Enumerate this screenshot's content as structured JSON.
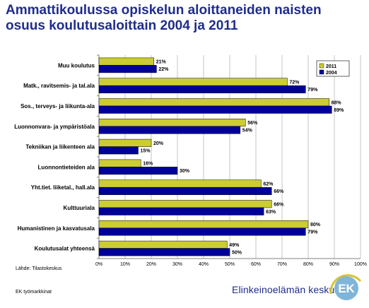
{
  "title": "Ammattikoulussa opiskelun aloittaneiden naisten osuus koulutusaloittain  2004 ja 2011",
  "source": "Lähde: Tilastokeskus",
  "footer_left": "EK työmarkkinat",
  "footer_org": "Elinkeinoelämän keskusliitto",
  "logo_text": "EK",
  "colors": {
    "s2011": "#cccc33",
    "s2004": "#000099",
    "title": "#1f2d8c",
    "logo": "#7fb5d8"
  },
  "chart_data": {
    "type": "bar",
    "orientation": "horizontal",
    "categories": [
      "Muu koulutus",
      "Matk., ravitsemis- ja tal.ala",
      "Sos., terveys- ja liikunta-ala",
      "Luonnonvara- ja ympäristöala",
      "Tekniikan ja liikenteen ala",
      "Luonnontieteiden ala",
      "Yht.tiet. liiketal., hall.ala",
      "Kulttuuriala",
      "Humanistinen ja kasvatusala",
      "Koulutusalat yhteensä"
    ],
    "series": [
      {
        "name": "2011",
        "values": [
          21,
          72,
          88,
          56,
          20,
          16,
          62,
          66,
          80,
          49
        ]
      },
      {
        "name": "2004",
        "values": [
          22,
          79,
          89,
          54,
          15,
          30,
          66,
          63,
          79,
          50
        ]
      }
    ],
    "xlim": [
      0,
      100
    ],
    "x_ticks": [
      "0%",
      "10%",
      "20%",
      "30%",
      "40%",
      "50%",
      "60%",
      "70%",
      "80%",
      "90%",
      "100%"
    ],
    "value_suffix": "%",
    "grid": "vertical",
    "legend": "top-right"
  }
}
